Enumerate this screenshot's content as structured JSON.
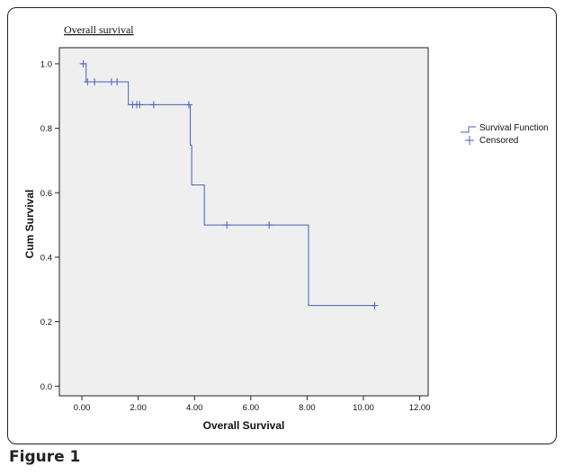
{
  "figure_label": "Figure 1",
  "chart_data": {
    "type": "line",
    "title": "Overall survival",
    "xlabel": "Overall Survival",
    "ylabel": "Cum Survival",
    "xlim": [
      -0.8,
      12.3
    ],
    "ylim": [
      -0.03,
      1.05
    ],
    "xticks": [
      "0.00",
      "2.00",
      "4.00",
      "6.00",
      "8.00",
      "10.00",
      "12.00"
    ],
    "xtick_values": [
      0,
      2,
      4,
      6,
      8,
      10,
      12
    ],
    "yticks": [
      "0.0",
      "0.2",
      "0.4",
      "0.6",
      "0.8",
      "1.0"
    ],
    "ytick_values": [
      0,
      0.2,
      0.4,
      0.6,
      0.8,
      1.0
    ],
    "grid": false,
    "legend_position": "right",
    "legend": [
      "Survival Function",
      "Censored"
    ],
    "series": [
      {
        "name": "Survival Function",
        "color": "#4a5fb8",
        "steps": [
          {
            "time": 0.0,
            "survival": 1.0
          },
          {
            "time": 0.15,
            "survival": 0.944
          },
          {
            "time": 1.65,
            "survival": 0.873
          },
          {
            "time": 3.85,
            "survival": 0.748
          },
          {
            "time": 3.9,
            "survival": 0.624
          },
          {
            "time": 4.35,
            "survival": 0.5
          },
          {
            "time": 8.05,
            "survival": 0.25
          },
          {
            "time": 10.4,
            "survival": 0.25
          }
        ]
      },
      {
        "name": "Censored",
        "color": "#4a5fb8",
        "points": [
          {
            "time": 0.05,
            "survival": 1.0
          },
          {
            "time": 0.2,
            "survival": 0.944
          },
          {
            "time": 0.45,
            "survival": 0.944
          },
          {
            "time": 1.05,
            "survival": 0.944
          },
          {
            "time": 1.25,
            "survival": 0.944
          },
          {
            "time": 1.8,
            "survival": 0.873
          },
          {
            "time": 1.95,
            "survival": 0.873
          },
          {
            "time": 2.05,
            "survival": 0.873
          },
          {
            "time": 2.55,
            "survival": 0.873
          },
          {
            "time": 3.8,
            "survival": 0.873
          },
          {
            "time": 5.15,
            "survival": 0.5
          },
          {
            "time": 6.65,
            "survival": 0.5
          },
          {
            "time": 10.4,
            "survival": 0.25
          }
        ]
      }
    ]
  }
}
